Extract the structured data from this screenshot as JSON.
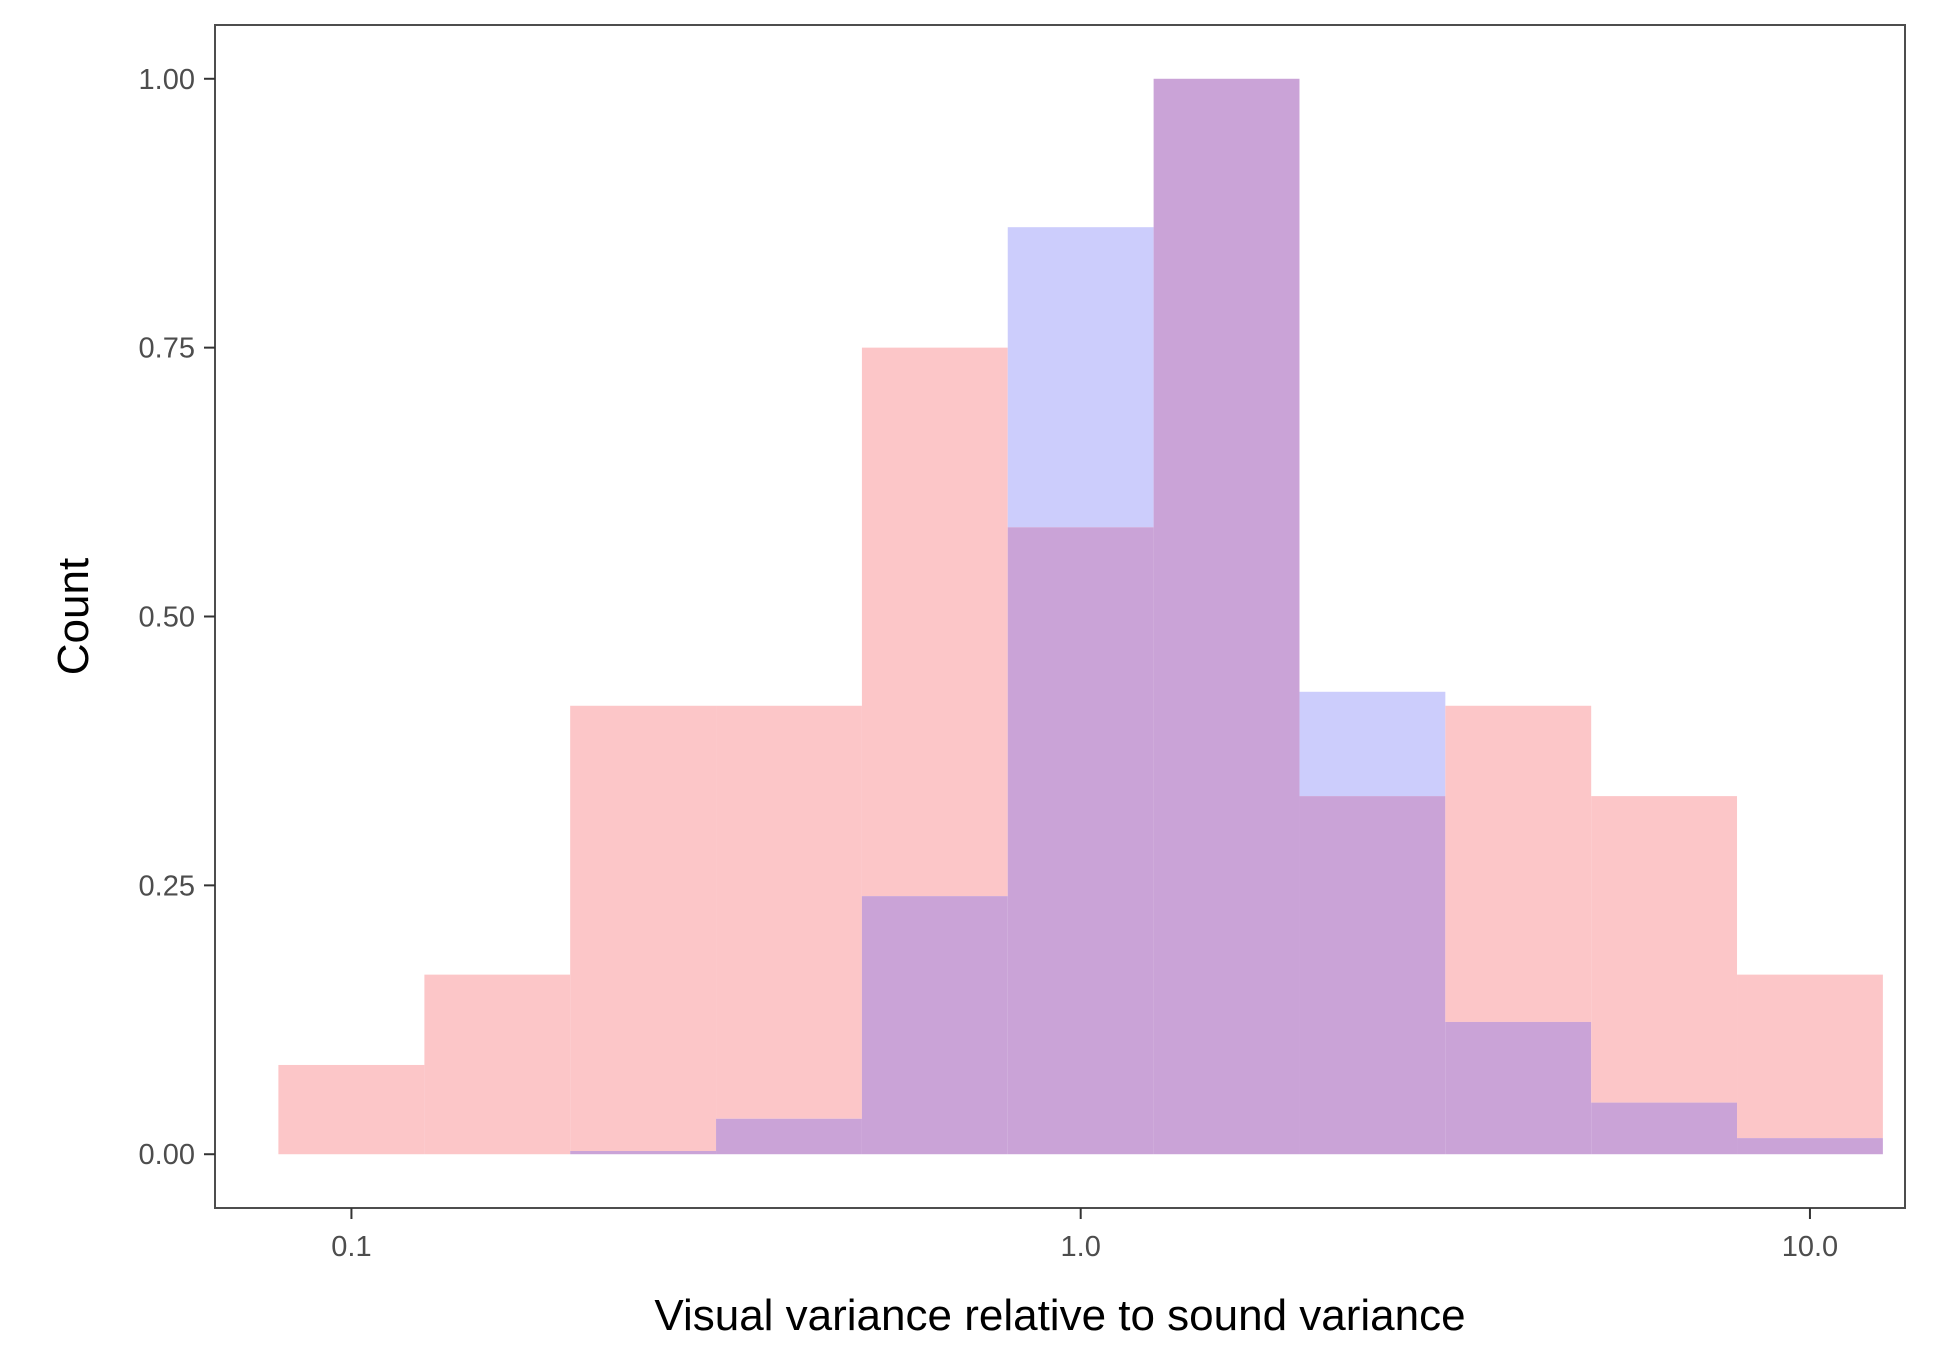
{
  "chart_data": {
    "type": "bar",
    "xlabel": "Visual variance relative to sound variance",
    "ylabel": "Count",
    "x_scale": "log10",
    "xlim": [
      0.065,
      13.5
    ],
    "ylim": [
      -0.05,
      1.05
    ],
    "grid": false,
    "legend": "none",
    "x_ticks": [
      0.1,
      1.0,
      10.0
    ],
    "x_tick_labels": [
      "0.1",
      "1.0",
      "10.0"
    ],
    "y_ticks": [
      0,
      0.25,
      0.5,
      0.75,
      1.0
    ],
    "y_tick_labels": [
      "0.00",
      "0.25",
      "0.50",
      "0.75",
      "1.00"
    ],
    "bin_edges": [
      0.0794,
      0.1259,
      0.1995,
      0.3162,
      0.5012,
      0.7943,
      1.2589,
      1.9953,
      3.1623,
      5.0119,
      7.9433,
      12.5893
    ],
    "series": [
      {
        "color": "#fcc6c8",
        "values": [
          0.083,
          0.167,
          0.417,
          0.417,
          0.75,
          0.583,
          1.0,
          0.333,
          0.417,
          0.333,
          0.167
        ]
      },
      {
        "color": "#cccdfc",
        "values": [
          0.0,
          0.0,
          0.003,
          0.033,
          0.24,
          0.862,
          1.0,
          0.43,
          0.123,
          0.048,
          0.015
        ]
      }
    ],
    "overlap_color": "#caa3d7"
  }
}
